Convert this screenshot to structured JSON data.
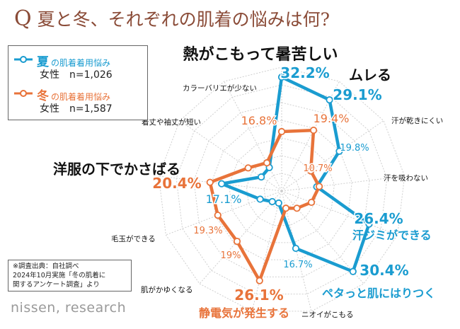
{
  "title": {
    "mark": "Q",
    "text": "夏と冬、それぞれの肌着の悩みは何?"
  },
  "legend": {
    "summer": {
      "season": "夏",
      "label": "の肌着着用悩み",
      "sample": "女性　n=1,026",
      "color": "#1a9cd0"
    },
    "winter": {
      "season": "冬",
      "label": "の肌着着用悩み",
      "sample": "女性　n=1,587",
      "color": "#e8733a"
    }
  },
  "chart_data": {
    "type": "radar",
    "categories": [
      "熱がこもって暑苦しい",
      "ムレる",
      "汗が乾きにくい",
      "汗を吸わない",
      "汗ジミができる",
      "ペタっと肌にはりつく",
      "ニオイがこもる",
      "静電気が発生する",
      "肌がかゆくなる",
      "毛玉ができる",
      "洋服の下でかさばる",
      "着丈や袖丈が短い",
      "カラーバリエが少ない"
    ],
    "series": [
      {
        "name": "夏",
        "values": [
          32.2,
          29.1,
          19.8,
          10.0,
          26.4,
          30.4,
          16.7,
          3.5,
          4.0,
          6.5,
          17.1,
          7.0,
          7.5
        ],
        "color": "#1a9cd0",
        "labels": [
          "32.2%",
          "29.1%",
          "19.8%",
          "",
          "26.4%",
          "30.4%",
          "16.7%",
          "",
          "",
          "",
          "17.1%",
          "",
          ""
        ]
      },
      {
        "name": "冬",
        "values": [
          16.8,
          19.4,
          10.0,
          10.7,
          9.0,
          6.5,
          5.0,
          26.1,
          19.0,
          19.3,
          20.4,
          11.5,
          9.0
        ],
        "color": "#e8733a",
        "labels": [
          "16.8%",
          "19.4%",
          "",
          "10.7%",
          "",
          "",
          "",
          "26.1%",
          "19%",
          "19.3%",
          "20.4%",
          "",
          ""
        ]
      }
    ],
    "rmax": 35
  },
  "source": {
    "lines": [
      "※調査出典：自社調べ",
      "2024年10月実施「冬の肌着に",
      "関するアンケート調査」より"
    ]
  },
  "logo": "nissen, research"
}
